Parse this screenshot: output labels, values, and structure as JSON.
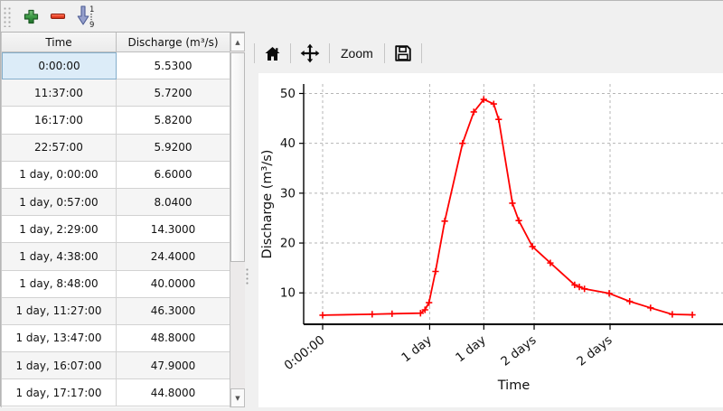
{
  "left_toolbar": {
    "buttons": [
      {
        "name": "add-row",
        "icon": "green-plus-icon"
      },
      {
        "name": "remove-row",
        "icon": "red-minus-icon"
      },
      {
        "name": "sort-ascending",
        "icon": "sort-1-9-arrow-icon"
      }
    ]
  },
  "table": {
    "columns": [
      "Time",
      "Discharge (m³/s)"
    ],
    "selected_cell": {
      "row": 0,
      "column": 0
    },
    "rows": [
      [
        "0:00:00",
        "5.5300"
      ],
      [
        "11:37:00",
        "5.7200"
      ],
      [
        "16:17:00",
        "5.8200"
      ],
      [
        "22:57:00",
        "5.9200"
      ],
      [
        "1 day, 0:00:00",
        "6.6000"
      ],
      [
        "1 day, 0:57:00",
        "8.0400"
      ],
      [
        "1 day, 2:29:00",
        "14.3000"
      ],
      [
        "1 day, 4:38:00",
        "24.4000"
      ],
      [
        "1 day, 8:48:00",
        "40.0000"
      ],
      [
        "1 day, 11:27:00",
        "46.3000"
      ],
      [
        "1 day, 13:47:00",
        "48.8000"
      ],
      [
        "1 day, 16:07:00",
        "47.9000"
      ],
      [
        "1 day, 17:17:00",
        "44.8000"
      ]
    ],
    "scrollbar": {
      "up_glyph": "▲",
      "down_glyph": "▼"
    }
  },
  "chart_toolbar": {
    "icons": [
      "home-icon",
      "pan-icon",
      "save-icon"
    ],
    "zoom_label": "Zoom"
  },
  "chart_data": {
    "type": "line",
    "title": "",
    "xlabel": "Time",
    "ylabel": "Discharge (m³/s)",
    "grid": true,
    "grid_style": "dashed",
    "legend": "none",
    "line_color": "#ff0000",
    "marker": "+",
    "xlim_hours": [
      -4.45,
      94.1
    ],
    "ylim": [
      3.7,
      51.9
    ],
    "x_ticks": [
      {
        "hours": 0,
        "label": "0:00:00"
      },
      {
        "hours": 25.1,
        "label": "1 day"
      },
      {
        "hours": 37.8,
        "label": "1 day"
      },
      {
        "hours": 49.6,
        "label": "2 days"
      },
      {
        "hours": 67.4,
        "label": "2 days"
      }
    ],
    "y_ticks": [
      10,
      20,
      30,
      40,
      50
    ],
    "series": [
      {
        "name": "Discharge",
        "x_hours": [
          0,
          11.62,
          16.28,
          22.95,
          24.0,
          24.95,
          26.48,
          28.63,
          32.8,
          35.45,
          37.78,
          40.12,
          41.28,
          44.5,
          46.0,
          49.2,
          53.4,
          59.1,
          60.2,
          61.4,
          67.2,
          72.0,
          76.9,
          82.0,
          86.7
        ],
        "values": [
          5.53,
          5.72,
          5.82,
          5.92,
          6.6,
          8.04,
          14.3,
          24.4,
          40.0,
          46.3,
          48.8,
          47.9,
          44.8,
          28.0,
          24.5,
          19.3,
          16.0,
          11.6,
          11.2,
          10.8,
          9.9,
          8.3,
          7.0,
          5.7,
          5.6
        ]
      }
    ]
  },
  "colors": {
    "toolbar_bg": "#f0f0f0",
    "selection_bg": "#dcecf8",
    "selection_border": "#84aecb",
    "line": "#ff0000",
    "gridline": "#b5b5b5"
  }
}
